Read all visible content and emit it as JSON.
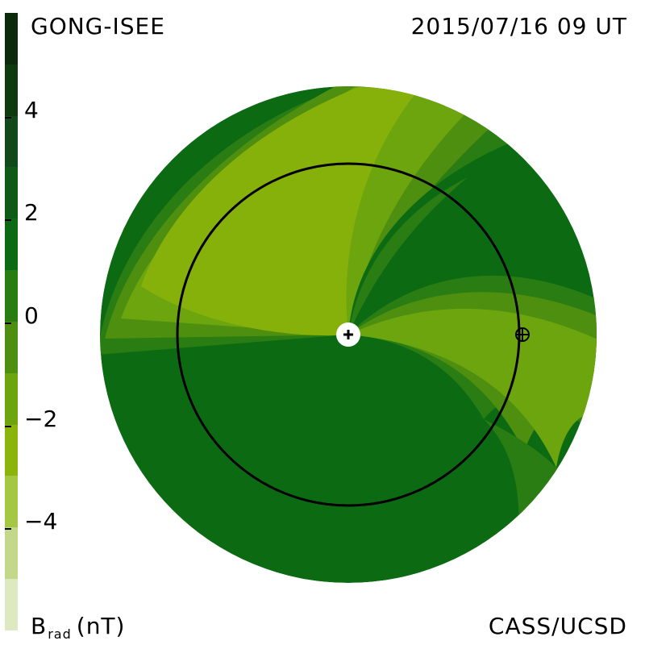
{
  "header": {
    "source_label": "GONG-ISEE",
    "timestamp": "2015/07/16 09 UT"
  },
  "footer": {
    "quantity_main": "B",
    "quantity_sub": "rad",
    "quantity_unit": "(nT)",
    "credit": "CASS/UCSD"
  },
  "colorbar": {
    "ticks": [
      "4",
      "2",
      "0",
      "−2",
      "−4"
    ],
    "tick_values": [
      4,
      2,
      0,
      -2,
      -4
    ],
    "range": [
      -6,
      6
    ],
    "colors_top_to_bottom": [
      "#0b2a0b",
      "#0f3a10",
      "#11491a",
      "#0f5a17",
      "#0d6a14",
      "#2a7d12",
      "#4e8f10",
      "#6ca50e",
      "#8bb50a",
      "#a4c744",
      "#c3d88a",
      "#dde9c0"
    ]
  },
  "map": {
    "markers": [
      "sun-center-marker",
      "earth-marker"
    ],
    "colors": {
      "dark_green": "#0b6a12",
      "mid_green": "#3f8a12",
      "light_green": "#86b10a",
      "orbit_ring": "#000000"
    }
  }
}
